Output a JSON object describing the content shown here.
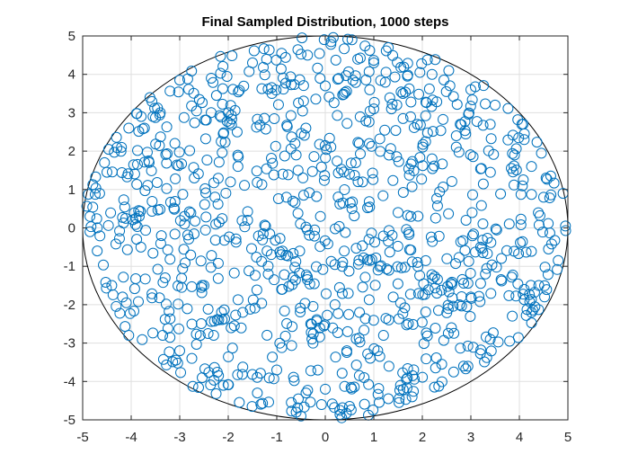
{
  "chart_data": {
    "type": "scatter",
    "title": "Final Sampled Distribution, 1000 steps",
    "xlabel": "",
    "ylabel": "",
    "xlim": [
      -5,
      5
    ],
    "ylim": [
      -5,
      5
    ],
    "xticks": [
      "-5",
      "-4",
      "-3",
      "-2",
      "-1",
      "0",
      "1",
      "2",
      "3",
      "4",
      "5"
    ],
    "yticks": [
      "-5",
      "-4",
      "-3",
      "-2",
      "-1",
      "0",
      "1",
      "2",
      "3",
      "4",
      "5"
    ],
    "grid": true,
    "marker": "open-circle",
    "marker_color": "#0072BD",
    "boundary": {
      "shape": "circle",
      "center": [
        0,
        0
      ],
      "radius": 5,
      "color": "#000000"
    },
    "series": [
      {
        "points_approx_count": 1000,
        "distribution": "approximately uniform inside the circle of radius 5",
        "points": [
          [
            0.12,
            4.85
          ],
          [
            -0.48,
            4.95
          ],
          [
            0.55,
            4.9
          ],
          [
            -0.9,
            4.55
          ],
          [
            1.0,
            4.3
          ],
          [
            -1.5,
            4.3
          ],
          [
            1.95,
            4.05
          ],
          [
            -2.35,
            3.9
          ],
          [
            2.2,
            4.0
          ],
          [
            -3.0,
            3.85
          ],
          [
            3.0,
            3.6
          ],
          [
            -3.4,
            3.0
          ],
          [
            3.5,
            3.2
          ],
          [
            -3.55,
            2.9
          ],
          [
            4.05,
            2.7
          ],
          [
            -4.05,
            2.6
          ],
          [
            4.1,
            2.3
          ],
          [
            -4.2,
            2.1
          ],
          [
            4.25,
            1.6
          ],
          [
            -4.55,
            1.7
          ],
          [
            4.55,
            1.3
          ],
          [
            -4.5,
            1.45
          ],
          [
            4.5,
            0.8
          ],
          [
            -4.65,
            0.9
          ],
          [
            4.9,
            0.9
          ],
          [
            -4.85,
            0.3
          ],
          [
            4.95,
            0.05
          ],
          [
            -4.85,
            -0.1
          ],
          [
            4.6,
            -0.55
          ],
          [
            -4.7,
            -0.6
          ],
          [
            4.8,
            -0.85
          ],
          [
            -4.4,
            -1.5
          ],
          [
            4.4,
            -1.5
          ],
          [
            -4.1,
            -1.95
          ],
          [
            4.1,
            -1.6
          ],
          [
            -4.05,
            -2.8
          ],
          [
            4.25,
            -2.2
          ],
          [
            -3.35,
            -2.8
          ],
          [
            3.8,
            -2.95
          ],
          [
            -3.2,
            -2.85
          ],
          [
            3.4,
            -2.9
          ],
          [
            -3.0,
            -3.2
          ],
          [
            2.85,
            -3.6
          ],
          [
            -2.75,
            -3.4
          ],
          [
            2.4,
            -3.55
          ],
          [
            -2.2,
            -3.85
          ],
          [
            1.8,
            -3.85
          ],
          [
            -2.1,
            -4.1
          ],
          [
            1.55,
            -4.1
          ],
          [
            -1.4,
            -4.3
          ],
          [
            1.3,
            -4.45
          ],
          [
            -0.7,
            -4.55
          ],
          [
            0.5,
            -4.65
          ],
          [
            -0.5,
            -4.9
          ],
          [
            0.3,
            -4.75
          ],
          [
            -0.6,
            -4.8
          ],
          [
            0.0,
            -4.2
          ],
          [
            0.8,
            -3.9
          ],
          [
            -1.0,
            -3.7
          ],
          [
            -0.3,
            -2.5
          ],
          [
            1.2,
            -2.8
          ],
          [
            -1.7,
            -2.2
          ],
          [
            2.3,
            -1.7
          ],
          [
            -2.5,
            -1.5
          ],
          [
            3.3,
            -1.2
          ],
          [
            -3.3,
            -1.3
          ],
          [
            1.9,
            -0.9
          ],
          [
            -1.2,
            -0.6
          ],
          [
            0.35,
            -1.0
          ],
          [
            2.9,
            0.2
          ],
          [
            -2.9,
            0.1
          ],
          [
            1.5,
            0.4
          ],
          [
            -0.8,
            0.8
          ],
          [
            0.5,
            1.4
          ],
          [
            -1.8,
            1.6
          ],
          [
            2.2,
            1.8
          ],
          [
            -3.1,
            2.2
          ],
          [
            3.4,
            2.7
          ],
          [
            -0.4,
            2.6
          ],
          [
            1.0,
            3.1
          ],
          [
            -2.0,
            3.0
          ],
          [
            2.7,
            2.4
          ],
          [
            0.0,
            3.7
          ],
          [
            -1.1,
            3.5
          ],
          [
            1.6,
            3.5
          ],
          [
            -2.7,
            1.3
          ],
          [
            3.9,
            1.9
          ],
          [
            -3.8,
            -0.5
          ],
          [
            0.9,
            -0.3
          ],
          [
            -0.1,
            0.3
          ],
          [
            0.2,
            -2.0
          ],
          [
            -0.9,
            -1.6
          ],
          [
            1.4,
            -1.8
          ],
          [
            2.6,
            -2.6
          ],
          [
            -2.3,
            -2.8
          ],
          [
            3.2,
            -0.5
          ],
          [
            -1.6,
            0.2
          ],
          [
            0.7,
            2.2
          ],
          [
            -0.6,
            1.9
          ],
          [
            1.9,
            2.7
          ]
        ]
      }
    ]
  }
}
